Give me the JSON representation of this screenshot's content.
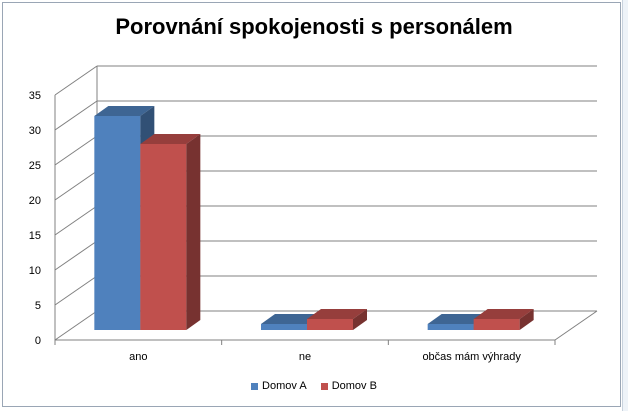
{
  "chart_data": {
    "type": "bar",
    "title": "Porovnání spokojenosti s personálem",
    "categories": [
      "ano",
      "ne",
      "občas mám  výhrady"
    ],
    "series": [
      {
        "name": "Domov A",
        "values": [
          32,
          1,
          1
        ],
        "color": "#4f81bd"
      },
      {
        "name": "Domov B",
        "values": [
          28,
          3,
          3
        ],
        "color": "#c0504d"
      }
    ],
    "yticks": [
      "0",
      "5",
      "10",
      "15",
      "20",
      "25",
      "30",
      "35"
    ],
    "ylim": [
      0,
      35
    ],
    "grid": true,
    "legend_position": "bottom"
  }
}
